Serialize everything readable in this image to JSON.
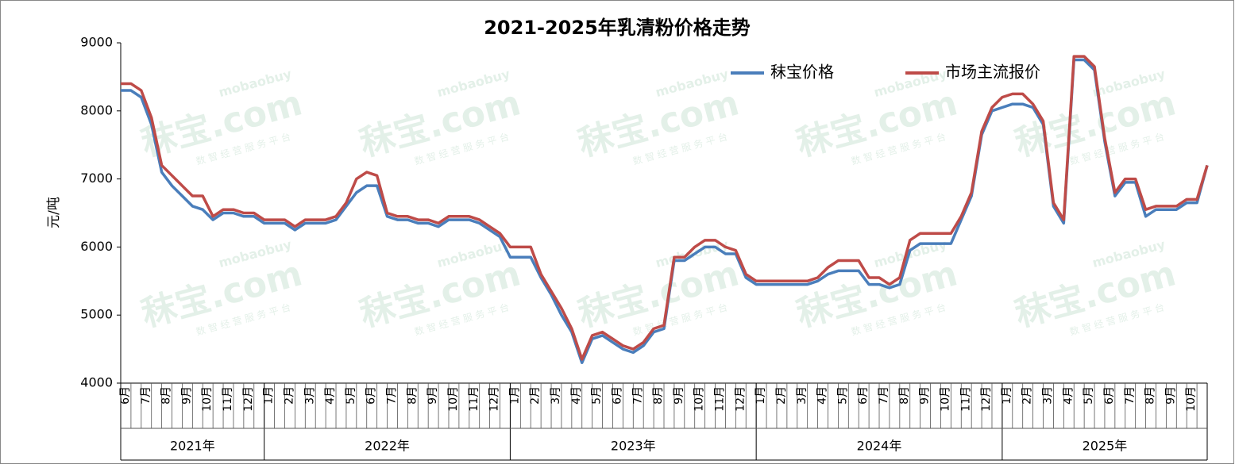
{
  "chart_data": {
    "type": "line",
    "title": "2021-2025年乳清粉价格走势",
    "y_label": "元/吨",
    "categories": [
      "6月",
      null,
      "7月",
      null,
      "8月",
      null,
      "9月",
      null,
      "10月",
      null,
      "11月",
      null,
      "12月",
      null,
      "1月",
      null,
      "2月",
      null,
      "3月",
      null,
      "4月",
      null,
      "5月",
      null,
      "6月",
      null,
      "7月",
      null,
      "8月",
      null,
      "9月",
      null,
      "10月",
      null,
      "11月",
      null,
      "12月",
      null,
      "1月",
      null,
      "2月",
      null,
      "3月",
      null,
      "4月",
      null,
      "5月",
      null,
      "6月",
      null,
      "7月",
      null,
      "8月",
      null,
      "9月",
      null,
      "10月",
      null,
      "11月",
      null,
      "12月",
      null,
      "1月",
      null,
      "2月",
      null,
      "3月",
      null,
      "4月",
      null,
      "5月",
      null,
      "6月",
      null,
      "7月",
      null,
      "8月",
      null,
      "9月",
      null,
      "10月",
      null,
      "11月",
      null,
      "12月",
      null,
      "1月",
      null,
      "2月",
      null,
      "3月",
      null,
      "4月",
      null,
      "5月",
      null,
      "6月",
      null,
      "7月",
      null,
      "8月",
      null,
      "9月",
      null,
      "10月",
      null,
      null
    ],
    "years": [
      "2021年",
      "2022年",
      "2023年",
      "2024年",
      "2025年"
    ],
    "series": [
      {
        "name": "秣宝价格",
        "color": "#4a7ebb",
        "values": [
          8300,
          8300,
          8200,
          7800,
          7100,
          6900,
          6750,
          6600,
          6550,
          6400,
          6500,
          6500,
          6450,
          6450,
          6350,
          6350,
          6350,
          6250,
          6350,
          6350,
          6350,
          6400,
          6600,
          6800,
          6900,
          6900,
          6450,
          6400,
          6400,
          6350,
          6350,
          6300,
          6400,
          6400,
          6400,
          6350,
          6250,
          6150,
          5850,
          5850,
          5850,
          5550,
          5300,
          5000,
          4750,
          4300,
          4650,
          4700,
          4600,
          4500,
          4450,
          4550,
          4750,
          4800,
          5800,
          5800,
          5900,
          6000,
          6000,
          5900,
          5900,
          5550,
          5450,
          5450,
          5450,
          5450,
          5450,
          5450,
          5500,
          5600,
          5650,
          5650,
          5650,
          5450,
          5450,
          5400,
          5450,
          5950,
          6050,
          6050,
          6050,
          6050,
          6400,
          6750,
          7650,
          8000,
          8050,
          8100,
          8100,
          8050,
          7800,
          6600,
          6350,
          8750,
          8750,
          8600,
          7550,
          6750,
          6950,
          6950,
          6450,
          6550,
          6550,
          6550,
          6650,
          6650,
          7200
        ]
      },
      {
        "name": "市场主流报价",
        "color": "#be4b48",
        "values": [
          8400,
          8400,
          8300,
          7900,
          7200,
          7050,
          6900,
          6750,
          6750,
          6450,
          6550,
          6550,
          6500,
          6500,
          6400,
          6400,
          6400,
          6300,
          6400,
          6400,
          6400,
          6450,
          6650,
          7000,
          7100,
          7050,
          6500,
          6450,
          6450,
          6400,
          6400,
          6350,
          6450,
          6450,
          6450,
          6400,
          6300,
          6200,
          6000,
          6000,
          6000,
          5600,
          5350,
          5100,
          4800,
          4350,
          4700,
          4750,
          4650,
          4550,
          4500,
          4600,
          4800,
          4850,
          5850,
          5850,
          6000,
          6100,
          6100,
          6000,
          5950,
          5600,
          5500,
          5500,
          5500,
          5500,
          5500,
          5500,
          5550,
          5700,
          5800,
          5800,
          5800,
          5550,
          5550,
          5450,
          5550,
          6100,
          6200,
          6200,
          6200,
          6200,
          6450,
          6800,
          7700,
          8050,
          8200,
          8250,
          8250,
          8100,
          7850,
          6650,
          6400,
          8800,
          8800,
          8650,
          7600,
          6800,
          7000,
          7000,
          6550,
          6600,
          6600,
          6600,
          6700,
          6700,
          7200
        ]
      }
    ],
    "ylim": [
      4000,
      9000
    ],
    "yticks": [
      4000,
      5000,
      6000,
      7000,
      8000,
      9000
    ],
    "legend": "top-right",
    "watermark": {
      "brand": "秣宝.com",
      "site": "mobaobuy",
      "slogan": "数 智 经 营 服 务 平 台"
    }
  }
}
